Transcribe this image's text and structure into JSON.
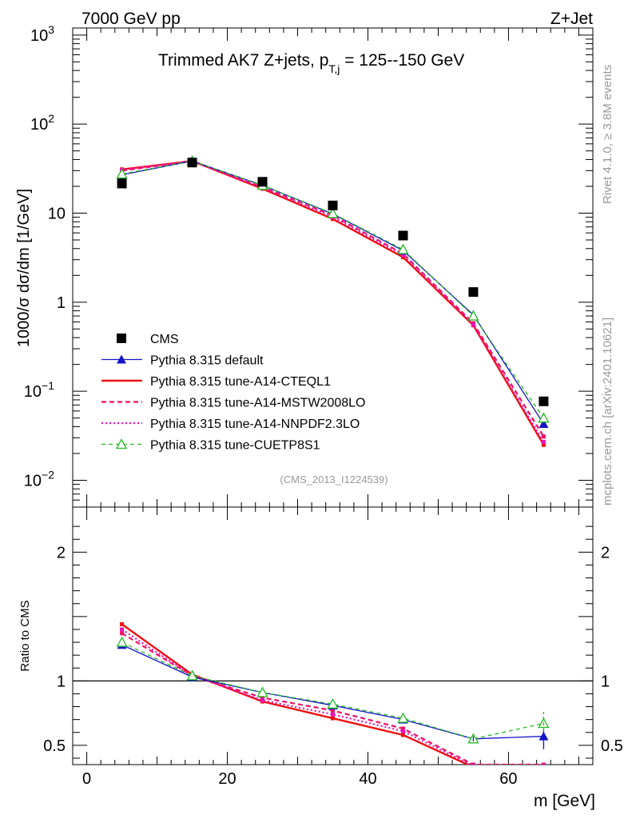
{
  "header": {
    "left": "7000 GeV pp",
    "right": "Z+Jet",
    "title_main": "Trimmed AK7 Z+jets, p",
    "title_sub": "T,j",
    "title_tail": " = 125--150 GeV",
    "side_top": "Rivet 4.1.0, ≥ 3.8M events",
    "side_bottom": "mcplots.cern.ch [arXiv:2401.10621]",
    "analysis_id": "(CMS_2013_I1224539)"
  },
  "colors": {
    "cms": "#000000",
    "default": "#1515c8",
    "cteql1": "#ee1111",
    "mstw": "#ee1166",
    "nnpdf": "#ee11bb",
    "cuetp8s1": "#22bb22"
  },
  "chart_data": [
    {
      "type": "line",
      "panel": "main",
      "ylabel": "1000/σ  dσ/dm [1/GeV]",
      "yscale": "log",
      "ylim": [
        0.005,
        1200
      ],
      "xlim": [
        -2,
        72
      ],
      "x": [
        5,
        15,
        25,
        35,
        45,
        55,
        65
      ],
      "yticks": [
        {
          "v": 0.01,
          "b": "10",
          "e": "−2"
        },
        {
          "v": 0.1,
          "b": "10",
          "e": "−1"
        },
        {
          "v": 1,
          "b": "1",
          "e": ""
        },
        {
          "v": 10,
          "b": "10",
          "e": ""
        },
        {
          "v": 100,
          "b": "10",
          "e": "2"
        },
        {
          "v": 1000,
          "b": "10",
          "e": "3"
        }
      ],
      "series": [
        {
          "key": "cms",
          "name": "CMS",
          "style": "square",
          "values": [
            21.5,
            37.0,
            22.5,
            12.2,
            5.6,
            1.3,
            0.077
          ]
        },
        {
          "key": "default",
          "name": "Pythia 8.315 default",
          "style": "tri",
          "values": [
            27.0,
            38.5,
            20.5,
            9.8,
            3.8,
            0.72,
            0.043
          ]
        },
        {
          "key": "cteql1",
          "name": "Pythia 8.315 tune-A14-CTEQL1",
          "style": "solid",
          "values": [
            31.0,
            38.5,
            18.8,
            8.6,
            3.2,
            0.55,
            0.025
          ]
        },
        {
          "key": "mstw",
          "name": "Pythia 8.315 tune-A14-MSTW2008LO",
          "style": "dashed",
          "values": [
            30.0,
            38.2,
            19.6,
            9.4,
            3.5,
            0.58,
            0.031
          ]
        },
        {
          "key": "nnpdf",
          "name": "Pythia 8.315 tune-A14-NNPDF2.3LO",
          "style": "dotted",
          "values": [
            30.5,
            38.5,
            19.2,
            9.0,
            3.4,
            0.56,
            0.027
          ]
        },
        {
          "key": "cuetp8s1",
          "name": "Pythia 8.315 tune-CUETP8S1",
          "style": "open-tri",
          "values": [
            27.5,
            38.5,
            20.5,
            9.9,
            3.9,
            0.7,
            0.05
          ]
        }
      ]
    },
    {
      "type": "line",
      "panel": "ratio",
      "ylabel": "Ratio to CMS",
      "xlabel": "m [GeV]",
      "ylim": [
        0.35,
        2.35
      ],
      "xlim": [
        -2,
        72
      ],
      "x": [
        5,
        15,
        25,
        35,
        45,
        55,
        65
      ],
      "xticks": [
        0,
        20,
        40,
        60
      ],
      "yticks": [
        0.5,
        1,
        2
      ],
      "series": [
        {
          "key": "default",
          "values": [
            1.28,
            1.03,
            0.91,
            0.81,
            0.7,
            0.55,
            0.57
          ]
        },
        {
          "key": "cteql1",
          "values": [
            1.44,
            1.05,
            0.84,
            0.71,
            0.58,
            0.33,
            0.32
          ]
        },
        {
          "key": "mstw",
          "values": [
            1.37,
            1.04,
            0.87,
            0.77,
            0.63,
            0.35,
            0.35
          ]
        },
        {
          "key": "nnpdf",
          "values": [
            1.4,
            1.04,
            0.85,
            0.74,
            0.61,
            0.34,
            0.34
          ]
        },
        {
          "key": "cuetp8s1",
          "values": [
            1.3,
            1.04,
            0.91,
            0.82,
            0.71,
            0.55,
            0.67
          ]
        }
      ]
    }
  ]
}
